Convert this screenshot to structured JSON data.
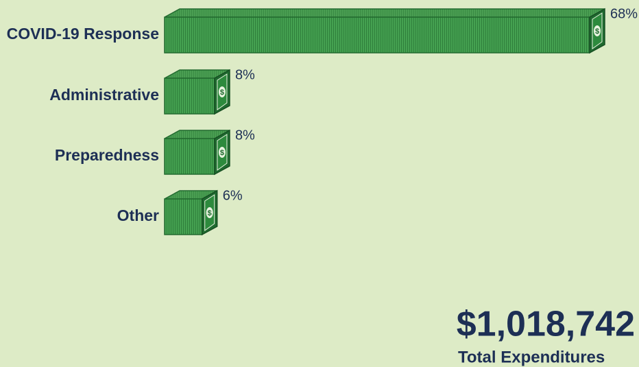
{
  "chart_data": {
    "type": "bar",
    "orientation": "horizontal",
    "categories": [
      "COVID-19 Response",
      "Administrative",
      "Preparedness",
      "Other"
    ],
    "values": [
      68,
      8,
      8,
      6
    ],
    "value_labels": [
      "68%",
      "8%",
      "8%",
      "6%"
    ],
    "color": "#3f9a4b",
    "total": "$1,018,742",
    "total_label": "Total Expenditures"
  }
}
